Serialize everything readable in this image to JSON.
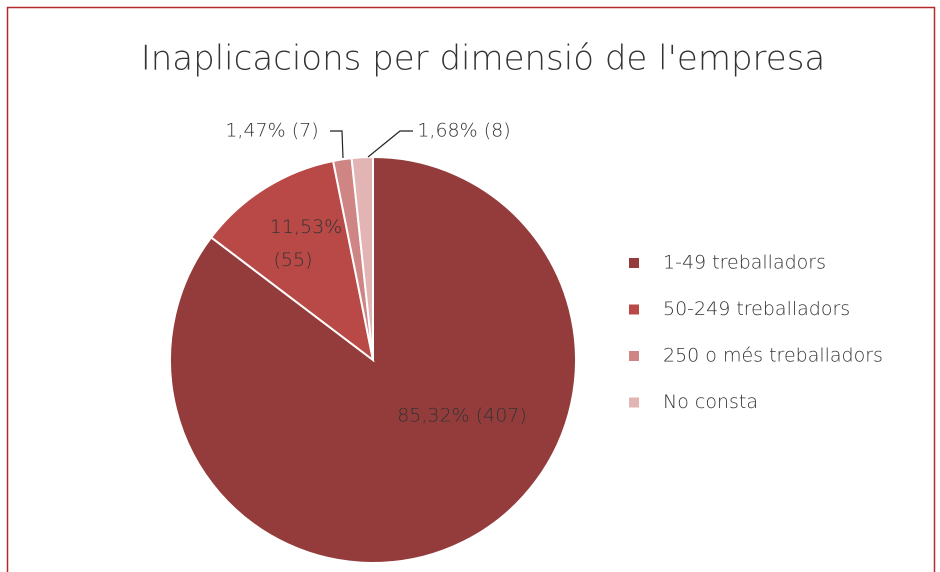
{
  "chart_data": {
    "type": "pie",
    "title": "Inaplicacions per dimensió de l'empresa",
    "categories": [
      "1-49 treballadors",
      "50-249 treballadors",
      "250 o més treballadors",
      "No consta"
    ],
    "values": [
      85.32,
      11.53,
      1.47,
      1.68
    ],
    "value_labels": [
      "85,32% (407)",
      "11,53% (55)",
      "1,47% (7)",
      "1,68% (8)"
    ],
    "colors": [
      "#943c3b",
      "#b84947",
      "#cf8584",
      "#e2b4b3"
    ],
    "legend": "right"
  }
}
